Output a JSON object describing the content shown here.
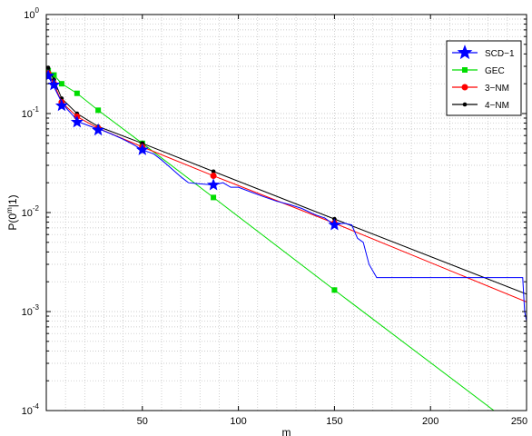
{
  "chart_data": {
    "type": "line",
    "xlabel": "m",
    "ylabel": "P(0^m|1)",
    "ylabel_parts": {
      "prefix": "P(0",
      "sup": "m",
      "suffix": "|1)"
    },
    "xlim": [
      0,
      250
    ],
    "ylim": [
      0.0001,
      1
    ],
    "yscale": "log",
    "grid": true,
    "legend_position": "top-right",
    "x_ticks": [
      "50",
      "100",
      "150",
      "200",
      "250"
    ],
    "y_ticks": [
      {
        "base": "10",
        "exp": "0"
      },
      {
        "base": "10",
        "exp": "-1"
      },
      {
        "base": "10",
        "exp": "-2"
      },
      {
        "base": "10",
        "exp": "-3"
      },
      {
        "base": "10",
        "exp": "-4"
      }
    ],
    "series": [
      {
        "name": "SCD−1",
        "color": "#0000ff",
        "marker": "star",
        "line": [
          [
            1,
            0.24
          ],
          [
            3,
            0.2
          ],
          [
            5,
            0.17
          ],
          [
            8,
            0.13
          ],
          [
            11,
            0.11
          ],
          [
            14,
            0.095
          ],
          [
            17,
            0.082
          ],
          [
            20,
            0.078
          ],
          [
            24,
            0.073
          ],
          [
            29,
            0.068
          ],
          [
            34,
            0.062
          ],
          [
            40,
            0.055
          ],
          [
            45,
            0.049
          ],
          [
            50,
            0.043
          ],
          [
            56,
            0.039
          ],
          [
            60,
            0.034
          ],
          [
            65,
            0.028
          ],
          [
            70,
            0.023
          ],
          [
            74,
            0.02
          ],
          [
            80,
            0.0195
          ],
          [
            87,
            0.019
          ],
          [
            92,
            0.02
          ],
          [
            96,
            0.018
          ],
          [
            100,
            0.018
          ],
          [
            107,
            0.016
          ],
          [
            113,
            0.0145
          ],
          [
            120,
            0.013
          ],
          [
            127,
            0.012
          ],
          [
            133,
            0.011
          ],
          [
            140,
            0.0095
          ],
          [
            145,
            0.0088
          ],
          [
            150,
            0.0075
          ],
          [
            155,
            0.0078
          ],
          [
            159,
            0.0075
          ],
          [
            162,
            0.0055
          ],
          [
            165,
            0.005
          ],
          [
            168,
            0.003
          ],
          [
            172,
            0.0022
          ],
          [
            180,
            0.0022
          ],
          [
            200,
            0.0022
          ],
          [
            230,
            0.0022
          ],
          [
            248,
            0.0022
          ],
          [
            249,
            0.001
          ],
          [
            250,
            0.0008
          ]
        ],
        "markers": [
          [
            1,
            0.24
          ],
          [
            4,
            0.195
          ],
          [
            8,
            0.12
          ],
          [
            16,
            0.082
          ],
          [
            27,
            0.068
          ],
          [
            50,
            0.043
          ],
          [
            87,
            0.019
          ],
          [
            150,
            0.0075
          ]
        ]
      },
      {
        "name": "GEC",
        "color": "#00dd00",
        "marker": "square",
        "line": [
          [
            1,
            0.27
          ],
          [
            4,
            0.245
          ],
          [
            8,
            0.2
          ],
          [
            16,
            0.16
          ],
          [
            27,
            0.108
          ],
          [
            50,
            0.05
          ],
          [
            87,
            0.0142
          ],
          [
            150,
            0.00165
          ],
          [
            233,
            0.0001
          ]
        ],
        "markers": [
          [
            1,
            0.27
          ],
          [
            4,
            0.245
          ],
          [
            8,
            0.2
          ],
          [
            16,
            0.16
          ],
          [
            27,
            0.108
          ],
          [
            50,
            0.05
          ],
          [
            87,
            0.0142
          ],
          [
            150,
            0.00165
          ]
        ]
      },
      {
        "name": "3−NM",
        "color": "#ff0000",
        "marker": "circle",
        "line": [
          [
            1,
            0.255
          ],
          [
            4,
            0.2
          ],
          [
            8,
            0.13
          ],
          [
            16,
            0.093
          ],
          [
            27,
            0.071
          ],
          [
            50,
            0.046
          ],
          [
            87,
            0.0235
          ],
          [
            150,
            0.0078
          ],
          [
            250,
            0.00125
          ]
        ],
        "markers": [
          [
            1,
            0.255
          ],
          [
            4,
            0.2
          ],
          [
            8,
            0.13
          ],
          [
            16,
            0.093
          ],
          [
            27,
            0.071
          ],
          [
            50,
            0.046
          ],
          [
            87,
            0.0235
          ],
          [
            150,
            0.0078
          ]
        ]
      },
      {
        "name": "4−NM",
        "color": "#000000",
        "marker": "dot",
        "line": [
          [
            1,
            0.29
          ],
          [
            4,
            0.22
          ],
          [
            8,
            0.142
          ],
          [
            16,
            0.1
          ],
          [
            27,
            0.074
          ],
          [
            50,
            0.05
          ],
          [
            87,
            0.026
          ],
          [
            150,
            0.0086
          ],
          [
            250,
            0.0015
          ]
        ],
        "markers": [
          [
            1,
            0.29
          ],
          [
            4,
            0.22
          ],
          [
            8,
            0.142
          ],
          [
            16,
            0.1
          ],
          [
            27,
            0.074
          ],
          [
            50,
            0.05
          ],
          [
            87,
            0.026
          ],
          [
            150,
            0.0086
          ]
        ]
      }
    ]
  }
}
